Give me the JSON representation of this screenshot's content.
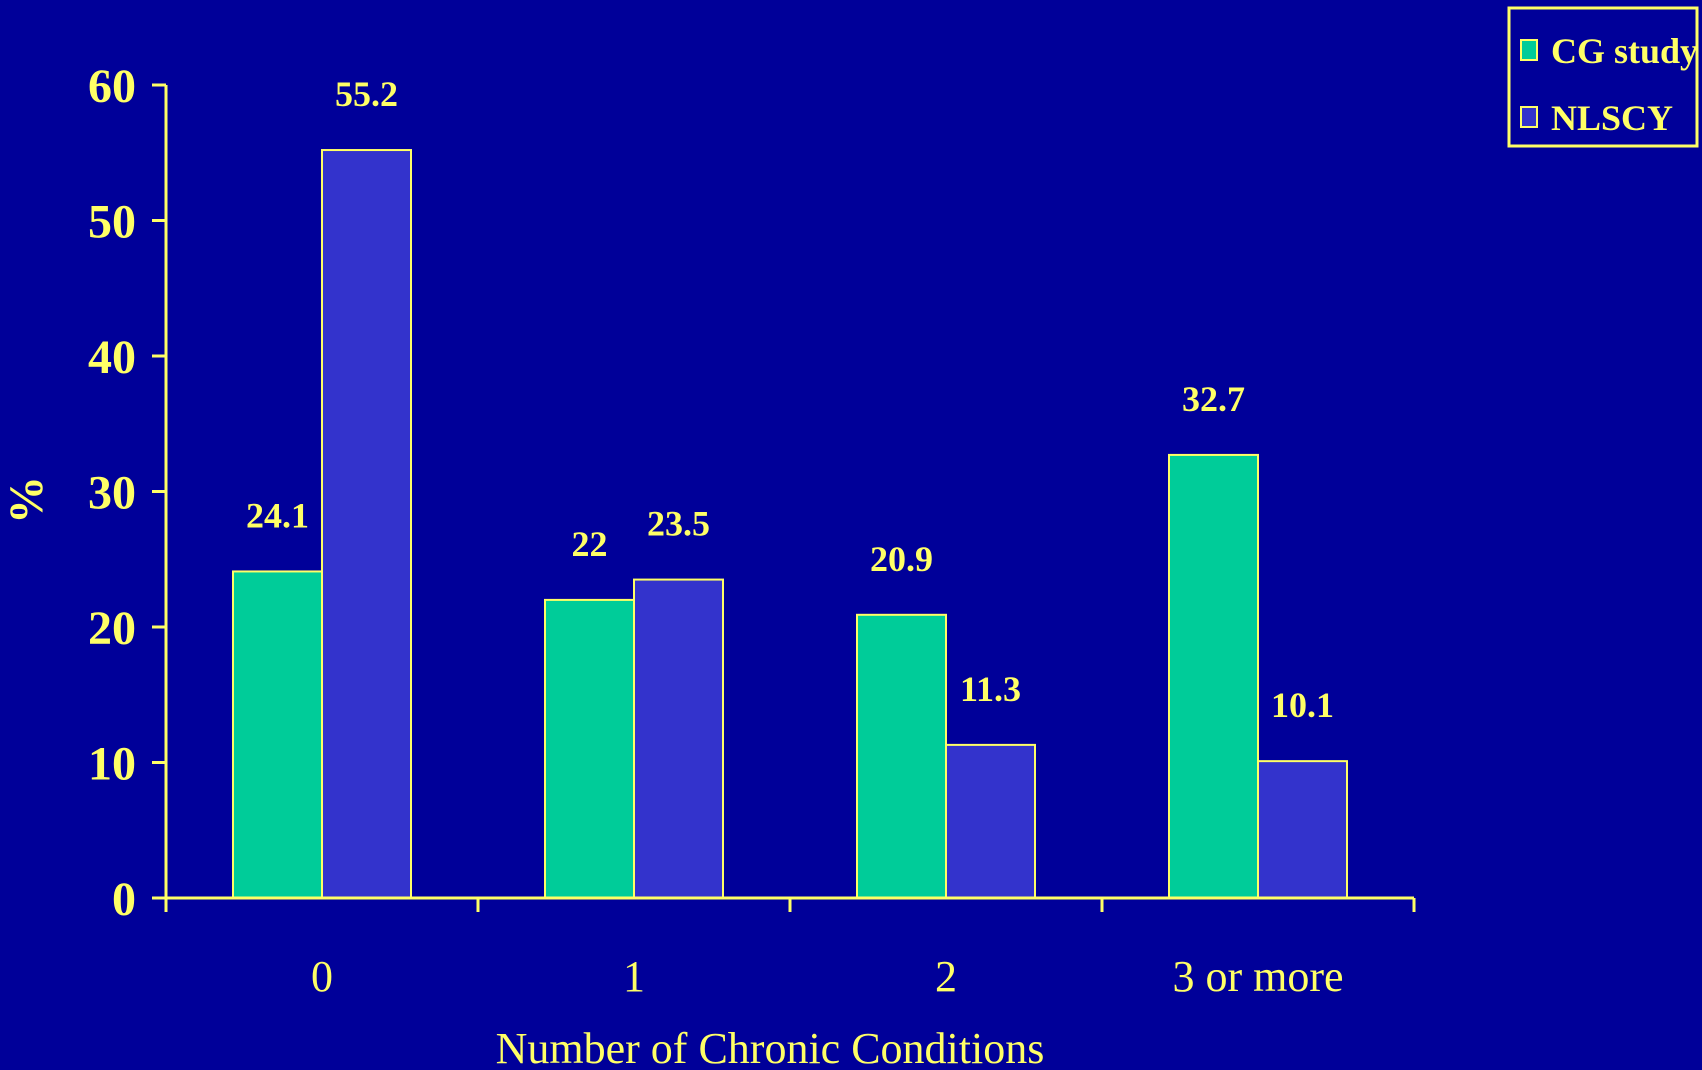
{
  "chart_data": {
    "type": "bar",
    "categories": [
      "0",
      "1",
      "2",
      "3 or more"
    ],
    "series": [
      {
        "name": "CG study",
        "values": [
          24.1,
          22,
          20.9,
          32.7
        ]
      },
      {
        "name": "NLSCY",
        "values": [
          55.2,
          23.5,
          11.3,
          10.1
        ]
      }
    ],
    "xlabel": "Number of Chronic Conditions",
    "ylabel": "%",
    "ylim": [
      0,
      60
    ],
    "yticks": [
      0,
      10,
      20,
      30,
      40,
      50,
      60
    ],
    "grid": false,
    "legend_position": "top-right",
    "data_labels": true
  },
  "colors": {
    "background": "#000099",
    "axis_and_text": "#FFFF66",
    "series": [
      "#00CC99",
      "#3333CC"
    ]
  }
}
